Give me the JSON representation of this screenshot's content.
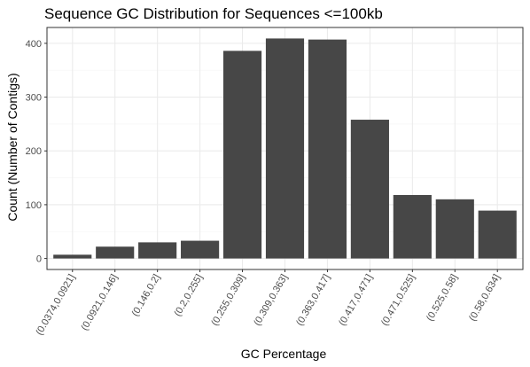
{
  "chart_data": {
    "type": "bar",
    "title": "Sequence GC Distribution for Sequences <=100kb",
    "xlabel": "GC Percentage",
    "ylabel": "Count (Number of Contigs)",
    "categories": [
      "(0.0374,0.0921]",
      "(0.0921,0.146]",
      "(0.146,0.2]",
      "(0.2,0.255]",
      "(0.255,0.309]",
      "(0.309,0.363]",
      "(0.363,0.417]",
      "(0.417,0.471]",
      "(0.471,0.525]",
      "(0.525,0.58]",
      "(0.58,0.634]"
    ],
    "values": [
      7,
      22,
      30,
      33,
      386,
      409,
      407,
      258,
      118,
      110,
      89
    ],
    "ylim": [
      -20.45,
      429.45
    ],
    "yticks": [
      0,
      100,
      200,
      300,
      400
    ],
    "grid": true,
    "theme": "bw",
    "colors": {
      "bar": "#474747",
      "panel_border": "#333333",
      "grid_major": "#ebebeb",
      "grid_minor": "#f5f5f5",
      "tick_text": "#4d4d4d",
      "title_text": "#000000"
    }
  }
}
